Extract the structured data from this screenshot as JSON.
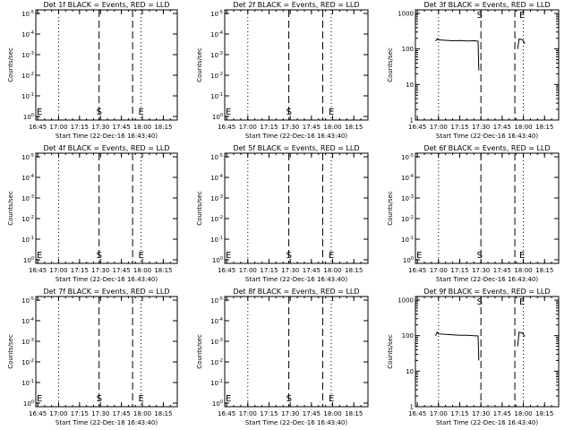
{
  "chart_data": [
    {
      "type": "line",
      "title": "Det 1f BLACK = Events, RED = LLD",
      "xlabel": "Start Time (22-Dec-16 16:43:40)",
      "ylabel": "Counts/sec",
      "scale": "log",
      "ytick_labels": [
        "10^0",
        "10^-1",
        "10^-2",
        "10^-3",
        "10^-4",
        "10^-5"
      ],
      "xtick_labels": [
        "16:45",
        "17:00",
        "17:15",
        "17:30",
        "17:45",
        "18:00",
        "18:15"
      ],
      "xlim": [
        "16:43:40",
        "18:25"
      ],
      "grid": false,
      "dotted_times": [
        "17:00",
        "17:59"
      ],
      "dashed_times": [
        "17:29",
        "17:53"
      ],
      "markers": [
        {
          "label": "E",
          "x": "16:44"
        },
        {
          "label": "S",
          "x": "17:29"
        },
        {
          "label": "E",
          "x": "17:59"
        }
      ],
      "series": []
    },
    {
      "type": "line",
      "title": "Det 2f BLACK = Events, RED = LLD",
      "xlabel": "Start Time (22-Dec-16 16:43:40)",
      "ylabel": "Counts/sec",
      "scale": "log",
      "ytick_labels": [
        "10^0",
        "10^-1",
        "10^-2",
        "10^-3",
        "10^-4",
        "10^-5"
      ],
      "xtick_labels": [
        "16:45",
        "17:00",
        "17:15",
        "17:30",
        "17:45",
        "18:00",
        "18:15"
      ],
      "xlim": [
        "16:43:40",
        "18:25"
      ],
      "grid": false,
      "dotted_times": [
        "17:00",
        "17:59"
      ],
      "dashed_times": [
        "17:29",
        "17:53"
      ],
      "markers": [
        {
          "label": "E",
          "x": "16:44"
        },
        {
          "label": "S",
          "x": "17:29"
        },
        {
          "label": "E",
          "x": "17:59"
        }
      ],
      "series": []
    },
    {
      "type": "line",
      "title": "Det 3f BLACK = Events, RED = LLD",
      "xlabel": "Start Time (22-Dec-16 16:43:40)",
      "ylabel": "Counts/sec",
      "scale": "log",
      "ylim": [
        1,
        1000
      ],
      "ytick_labels": [
        "1",
        "10",
        "100",
        "1000"
      ],
      "xtick_labels": [
        "16:45",
        "17:00",
        "17:15",
        "17:30",
        "17:45",
        "18:00",
        "18:15"
      ],
      "xlim": [
        "16:43:40",
        "18:25"
      ],
      "grid": false,
      "dotted_times": [
        "17:00",
        "18:00"
      ],
      "dashed_times": [
        "17:30",
        "17:54"
      ],
      "markers": [
        {
          "label": "S",
          "x": "17:29"
        },
        {
          "label": "E",
          "x": "17:59"
        }
      ],
      "series": [
        {
          "x": [
            "16:58",
            "16:59",
            "17:00",
            "17:05",
            "17:10",
            "17:15",
            "17:20",
            "17:25",
            "17:28",
            "17:28:30"
          ],
          "y": [
            165,
            195,
            180,
            175,
            170,
            172,
            168,
            170,
            165,
            25
          ]
        },
        {
          "x": [
            "17:56",
            "17:57",
            "17:59",
            "18:00",
            "18:01"
          ],
          "y": [
            100,
            190,
            185,
            170,
            140
          ]
        }
      ]
    },
    {
      "type": "line",
      "title": "Det 4f BLACK = Events, RED = LLD",
      "xlabel": "Start Time (22-Dec-16 16:43:40)",
      "ylabel": "Counts/sec",
      "scale": "log",
      "ytick_labels": [
        "10^0",
        "10^-1",
        "10^-2",
        "10^-3",
        "10^-4",
        "10^-5"
      ],
      "xtick_labels": [
        "16:45",
        "17:00",
        "17:15",
        "17:30",
        "17:45",
        "18:00",
        "18:15"
      ],
      "xlim": [
        "16:43:40",
        "18:25"
      ],
      "grid": false,
      "dotted_times": [
        "17:00",
        "17:59"
      ],
      "dashed_times": [
        "17:29",
        "17:53"
      ],
      "markers": [
        {
          "label": "E",
          "x": "16:44"
        },
        {
          "label": "S",
          "x": "17:29"
        },
        {
          "label": "E",
          "x": "17:59"
        }
      ],
      "series": []
    },
    {
      "type": "line",
      "title": "Det 5f BLACK = Events, RED = LLD",
      "xlabel": "Start Time (22-Dec-16 16:43:40)",
      "ylabel": "Counts/sec",
      "scale": "log",
      "ytick_labels": [
        "10^0",
        "10^-1",
        "10^-2",
        "10^-3",
        "10^-4",
        "10^-5"
      ],
      "xtick_labels": [
        "16:45",
        "17:00",
        "17:15",
        "17:30",
        "17:45",
        "18:00",
        "18:15"
      ],
      "xlim": [
        "16:43:40",
        "18:25"
      ],
      "grid": false,
      "dotted_times": [
        "17:00",
        "17:59"
      ],
      "dashed_times": [
        "17:29",
        "17:53"
      ],
      "markers": [
        {
          "label": "E",
          "x": "16:44"
        },
        {
          "label": "S",
          "x": "17:29"
        },
        {
          "label": "E",
          "x": "17:59"
        }
      ],
      "series": []
    },
    {
      "type": "line",
      "title": "Det 6f BLACK = Events, RED = LLD",
      "xlabel": "Start Time (22-Dec-16 16:43:40)",
      "ylabel": "Counts/sec",
      "scale": "log",
      "ytick_labels": [
        "10^0",
        "10^-1",
        "10^-2",
        "10^-3",
        "10^-4",
        "10^-5"
      ],
      "xtick_labels": [
        "16:45",
        "17:00",
        "17:15",
        "17:30",
        "17:45",
        "18:00",
        "18:15"
      ],
      "xlim": [
        "16:43:40",
        "18:25"
      ],
      "grid": false,
      "dotted_times": [
        "17:00",
        "18:00"
      ],
      "dashed_times": [
        "17:30",
        "17:54"
      ],
      "markers": [
        {
          "label": "E",
          "x": "16:44"
        },
        {
          "label": "S",
          "x": "17:29"
        },
        {
          "label": "E",
          "x": "17:59"
        }
      ],
      "series": []
    },
    {
      "type": "line",
      "title": "Det 7f BLACK = Events, RED = LLD",
      "xlabel": "Start Time (22-Dec-16 16:43:40)",
      "ylabel": "Counts/sec",
      "scale": "log",
      "ytick_labels": [
        "10^0",
        "10^-1",
        "10^-2",
        "10^-3",
        "10^-4",
        "10^-5"
      ],
      "xtick_labels": [
        "16:45",
        "17:00",
        "17:15",
        "17:30",
        "17:45",
        "18:00",
        "18:15"
      ],
      "xlim": [
        "16:43:40",
        "18:25"
      ],
      "grid": false,
      "dotted_times": [
        "17:00",
        "17:59"
      ],
      "dashed_times": [
        "17:29",
        "17:53"
      ],
      "markers": [
        {
          "label": "E",
          "x": "16:44"
        },
        {
          "label": "S",
          "x": "17:29"
        },
        {
          "label": "E",
          "x": "17:59"
        }
      ],
      "series": []
    },
    {
      "type": "line",
      "title": "Det 8f BLACK = Events, RED = LLD",
      "xlabel": "Start Time (22-Dec-16 16:43:40)",
      "ylabel": "Counts/sec",
      "scale": "log",
      "ytick_labels": [
        "10^0",
        "10^-1",
        "10^-2",
        "10^-3",
        "10^-4",
        "10^-5"
      ],
      "xtick_labels": [
        "16:45",
        "17:00",
        "17:15",
        "17:30",
        "17:45",
        "18:00",
        "18:15"
      ],
      "xlim": [
        "16:43:40",
        "18:25"
      ],
      "grid": false,
      "dotted_times": [
        "17:00",
        "17:59"
      ],
      "dashed_times": [
        "17:29",
        "17:53"
      ],
      "markers": [
        {
          "label": "E",
          "x": "16:44"
        },
        {
          "label": "S",
          "x": "17:29"
        },
        {
          "label": "E",
          "x": "17:59"
        }
      ],
      "series": []
    },
    {
      "type": "line",
      "title": "Det 9f BLACK = Events, RED = LLD",
      "xlabel": "Start Time (22-Dec-16 16:43:40)",
      "ylabel": "Counts/sec",
      "scale": "log",
      "ylim": [
        1,
        1000
      ],
      "ytick_labels": [
        "1",
        "10",
        "100",
        "1000"
      ],
      "xtick_labels": [
        "16:45",
        "17:00",
        "17:15",
        "17:30",
        "17:45",
        "18:00",
        "18:15"
      ],
      "xlim": [
        "16:43:40",
        "18:25"
      ],
      "grid": false,
      "dotted_times": [
        "17:00",
        "18:00"
      ],
      "dashed_times": [
        "17:30",
        "17:54"
      ],
      "markers": [
        {
          "label": "S",
          "x": "17:29"
        },
        {
          "label": "E",
          "x": "17:59"
        }
      ],
      "series": [
        {
          "x": [
            "16:58",
            "16:59",
            "17:00",
            "17:05",
            "17:10",
            "17:15",
            "17:20",
            "17:25",
            "17:28",
            "17:28:30"
          ],
          "y": [
            100,
            125,
            112,
            108,
            105,
            103,
            102,
            100,
            98,
            20
          ]
        },
        {
          "x": [
            "17:56",
            "17:57",
            "17:59",
            "18:00",
            "18:01"
          ],
          "y": [
            50,
            125,
            120,
            110,
            95
          ]
        }
      ]
    }
  ]
}
